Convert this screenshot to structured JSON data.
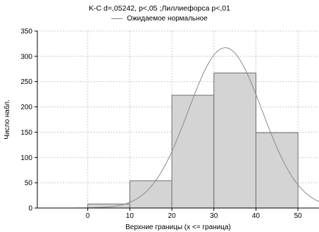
{
  "chart_data": {
    "type": "bar",
    "title": "K-C d=,05242, p<,05 ;Лиллиефорса p<,01",
    "xlabel": "Верхние границы (x <= граница)",
    "ylabel": "Число набл.",
    "legend": [
      {
        "label": "Ожидаемое нормальное",
        "style": "line",
        "color": "#7f7f7f"
      }
    ],
    "legend_position": "top-center",
    "bins": [
      {
        "from": 0,
        "to": 10,
        "value": 8
      },
      {
        "from": 10,
        "to": 20,
        "value": 54
      },
      {
        "from": 20,
        "to": 30,
        "value": 223
      },
      {
        "from": 30,
        "to": 40,
        "value": 267
      },
      {
        "from": 40,
        "to": 50,
        "value": 149
      }
    ],
    "expected_normal": {
      "mean": 32.7,
      "sd": 8.8,
      "peak": 317
    },
    "xlim": [
      -12,
      55
    ],
    "ylim": [
      0,
      350
    ],
    "xticks": [
      "0",
      "10",
      "20",
      "30",
      "40",
      "50"
    ],
    "yticks": [
      "0",
      "50",
      "100",
      "150",
      "200",
      "250",
      "300",
      "350"
    ],
    "grid": true,
    "bar_color": "#d4d4d4",
    "bar_edge_color": "#6e6e6e",
    "curve_color": "#8a8a8a"
  }
}
